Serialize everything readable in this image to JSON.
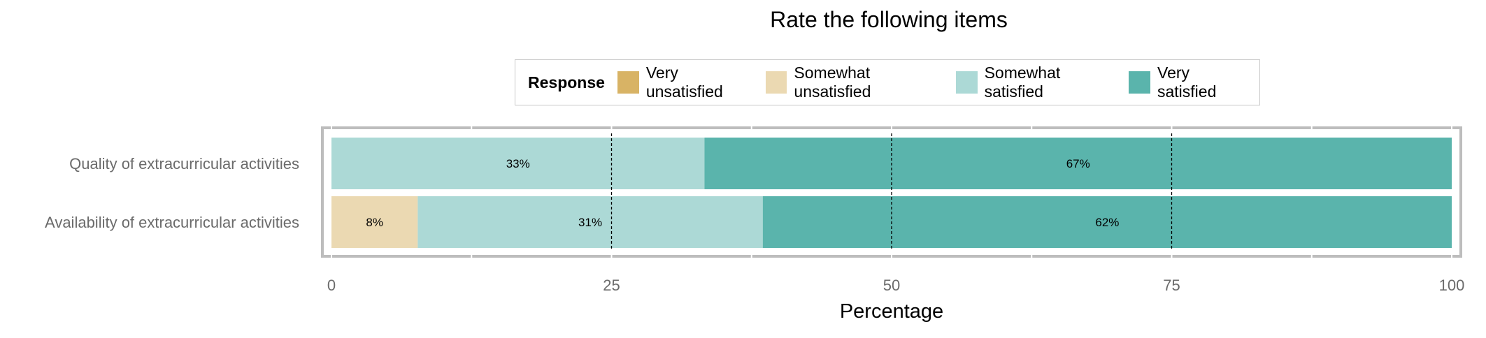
{
  "chart_data": {
    "type": "bar",
    "orientation": "horizontal",
    "stacked": true,
    "title": "Rate the following items",
    "xlabel": "Percentage",
    "ylabel": "",
    "xlim": [
      0,
      100
    ],
    "xticks": [
      "0",
      "25",
      "50",
      "75",
      "100"
    ],
    "legend": {
      "title": "Response",
      "placement": "top",
      "entries": [
        "Very unsatisfied",
        "Somewhat unsatisfied",
        "Somewhat satisfied",
        "Very satisfied"
      ]
    },
    "categories": [
      "Quality of extracurricular activities",
      "Availability of extracurricular activities"
    ],
    "series": [
      {
        "name": "Very unsatisfied",
        "color": "#d8b365",
        "values": [
          0,
          0
        ],
        "labels": [
          "",
          ""
        ]
      },
      {
        "name": "Somewhat unsatisfied",
        "color": "#ebd9b2",
        "values": [
          0,
          7.7
        ],
        "labels": [
          "",
          "8%"
        ]
      },
      {
        "name": "Somewhat satisfied",
        "color": "#acd9d6",
        "values": [
          33.3,
          30.8
        ],
        "labels": [
          "33%",
          "31%"
        ]
      },
      {
        "name": "Very satisfied",
        "color": "#5ab4ac",
        "values": [
          66.7,
          61.5
        ],
        "labels": [
          "67%",
          "62%"
        ]
      }
    ],
    "grid": true
  }
}
